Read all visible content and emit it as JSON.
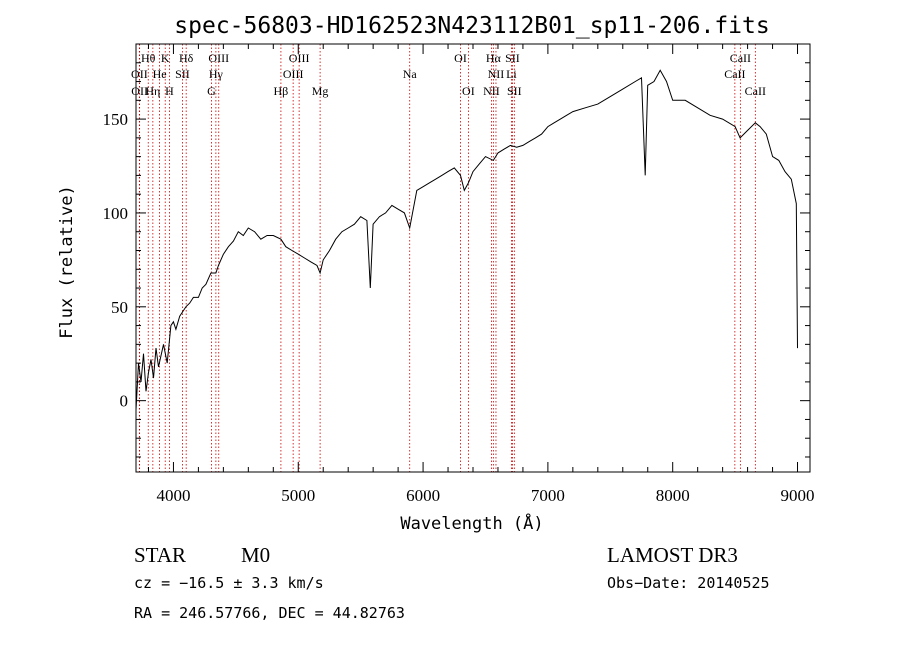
{
  "chart_data": {
    "type": "line",
    "title": "spec-56803-HD162523N423112B01_sp11-206.fits",
    "xlabel": "Wavelength (Å)",
    "ylabel": "Flux (relative)",
    "xlim": [
      3700,
      9100
    ],
    "ylim": [
      -38,
      190
    ],
    "xticks": [
      4000,
      5000,
      6000,
      7000,
      8000,
      9000
    ],
    "yticks": [
      0,
      50,
      100,
      150
    ],
    "grid": false,
    "series": [
      {
        "x": [
          3700,
          3720,
          3740,
          3760,
          3780,
          3800,
          3820,
          3840,
          3860,
          3880,
          3900,
          3920,
          3950,
          3980,
          4000,
          4020,
          4050,
          4080,
          4100,
          4130,
          4160,
          4200,
          4230,
          4260,
          4300,
          4340,
          4360,
          4400,
          4440,
          4480,
          4520,
          4560,
          4600,
          4650,
          4700,
          4750,
          4800,
          4861,
          4900,
          4950,
          5000,
          5050,
          5100,
          5150,
          5175,
          5200,
          5250,
          5300,
          5350,
          5400,
          5450,
          5500,
          5550,
          5577,
          5600,
          5650,
          5700,
          5750,
          5800,
          5850,
          5893,
          5950,
          6000,
          6050,
          6100,
          6150,
          6200,
          6250,
          6300,
          6330,
          6363,
          6400,
          6450,
          6500,
          6563,
          6600,
          6650,
          6700,
          6750,
          6800,
          6850,
          6900,
          6950,
          7000,
          7050,
          7100,
          7150,
          7200,
          7300,
          7400,
          7500,
          7600,
          7700,
          7750,
          7780,
          7800,
          7850,
          7900,
          7950,
          8000,
          8100,
          8200,
          8300,
          8400,
          8500,
          8540,
          8600,
          8662,
          8700,
          8750,
          8800,
          8850,
          8900,
          8950,
          8990,
          9000
        ],
        "y": [
          -5,
          20,
          10,
          25,
          5,
          15,
          22,
          12,
          28,
          18,
          24,
          30,
          20,
          40,
          42,
          38,
          45,
          48,
          50,
          52,
          55,
          55,
          60,
          62,
          68,
          68,
          72,
          78,
          82,
          85,
          90,
          88,
          92,
          90,
          86,
          88,
          88,
          86,
          82,
          80,
          78,
          76,
          74,
          72,
          68,
          75,
          80,
          86,
          90,
          92,
          94,
          98,
          96,
          60,
          94,
          98,
          100,
          104,
          102,
          100,
          92,
          112,
          114,
          116,
          118,
          120,
          122,
          124,
          120,
          112,
          116,
          122,
          126,
          130,
          128,
          132,
          134,
          136,
          135,
          136,
          138,
          140,
          142,
          146,
          148,
          150,
          152,
          154,
          156,
          158,
          162,
          166,
          170,
          172,
          120,
          168,
          170,
          176,
          170,
          160,
          160,
          156,
          152,
          150,
          146,
          140,
          144,
          148,
          146,
          142,
          130,
          128,
          122,
          118,
          105,
          28
        ]
      }
    ],
    "spectral_lines": [
      {
        "label": "Hθ",
        "x": 3798,
        "row": 0
      },
      {
        "label": "K",
        "x": 3934,
        "row": 0
      },
      {
        "label": "Hδ",
        "x": 4102,
        "row": 0
      },
      {
        "label": "OIII",
        "x": 4363,
        "row": 0
      },
      {
        "label": "OIII",
        "x": 5007,
        "row": 0
      },
      {
        "label": "OI",
        "x": 6300,
        "row": 0
      },
      {
        "label": "Hα",
        "x": 6563,
        "row": 0
      },
      {
        "label": "SII",
        "x": 6716,
        "row": 0
      },
      {
        "label": "CaII",
        "x": 8542,
        "row": 0
      },
      {
        "label": "OII",
        "x": 3727,
        "row": 1
      },
      {
        "label": "He",
        "x": 3889,
        "row": 1
      },
      {
        "label": "SII",
        "x": 4072,
        "row": 1
      },
      {
        "label": "Hγ",
        "x": 4340,
        "row": 1
      },
      {
        "label": "OIII",
        "x": 4959,
        "row": 1
      },
      {
        "label": "Na",
        "x": 5893,
        "row": 1
      },
      {
        "label": "NII",
        "x": 6584,
        "row": 1
      },
      {
        "label": "Li",
        "x": 6708,
        "row": 1
      },
      {
        "label": "CaII",
        "x": 8498,
        "row": 1
      },
      {
        "label": "OII",
        "x": 3729,
        "row": 2
      },
      {
        "label": "Hη",
        "x": 3835,
        "row": 2
      },
      {
        "label": "H",
        "x": 3968,
        "row": 2
      },
      {
        "label": "G",
        "x": 4305,
        "row": 2
      },
      {
        "label": "Hβ",
        "x": 4861,
        "row": 2
      },
      {
        "label": "Mg",
        "x": 5175,
        "row": 2
      },
      {
        "label": "OI",
        "x": 6363,
        "row": 2
      },
      {
        "label": "NII",
        "x": 6548,
        "row": 2
      },
      {
        "label": "SII",
        "x": 6731,
        "row": 2
      },
      {
        "label": "CaII",
        "x": 8662,
        "row": 2
      }
    ]
  },
  "info": {
    "object_type": "STAR",
    "subclass": "M0",
    "survey": "LAMOST DR3",
    "cz": "cz = −16.5 ± 3.3 km/s",
    "obs_date": "Obs−Date: 20140525",
    "coords": "RA = 246.57766, DEC =  44.82763"
  },
  "colors": {
    "spectrum": "#000000",
    "line_markers": "#cc0000",
    "axes": "#000000"
  }
}
